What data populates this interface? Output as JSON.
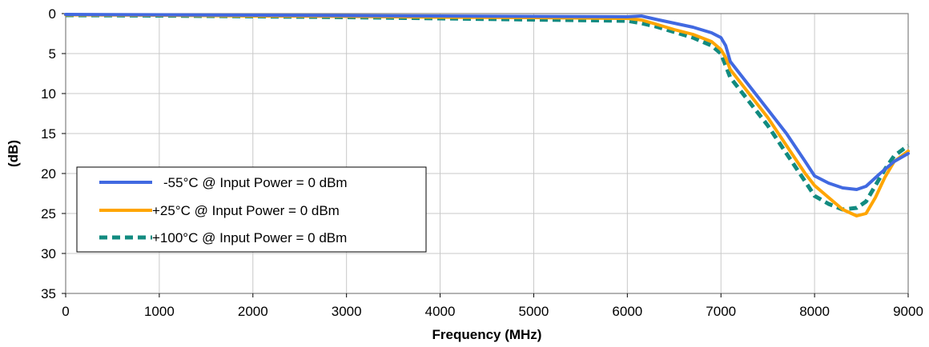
{
  "chart_data": {
    "type": "line",
    "xlabel": "Frequency (MHz)",
    "ylabel": "(dB)",
    "xlim": [
      0,
      9000
    ],
    "ylim": [
      0,
      35
    ],
    "y_inverted": true,
    "x_ticks": [
      0,
      1000,
      2000,
      3000,
      4000,
      5000,
      6000,
      7000,
      8000,
      9000
    ],
    "y_ticks": [
      0,
      5,
      10,
      15,
      20,
      25,
      30,
      35
    ],
    "grid": true,
    "legend_position": "left",
    "series": [
      {
        "name": "-55°C @  Input Power = 0 dBm",
        "color": "#4169E1",
        "style": "solid",
        "points": [
          [
            0,
            0.1
          ],
          [
            1000,
            0.15
          ],
          [
            2000,
            0.2
          ],
          [
            3000,
            0.25
          ],
          [
            4000,
            0.3
          ],
          [
            5000,
            0.35
          ],
          [
            6000,
            0.4
          ],
          [
            6150,
            0.3
          ],
          [
            6300,
            0.7
          ],
          [
            6500,
            1.2
          ],
          [
            6700,
            1.7
          ],
          [
            6900,
            2.4
          ],
          [
            7000,
            3.0
          ],
          [
            7050,
            4.0
          ],
          [
            7100,
            6.0
          ],
          [
            7300,
            9.0
          ],
          [
            7500,
            12.0
          ],
          [
            7700,
            15.0
          ],
          [
            7900,
            18.5
          ],
          [
            8000,
            20.3
          ],
          [
            8150,
            21.2
          ],
          [
            8300,
            21.8
          ],
          [
            8450,
            22.0
          ],
          [
            8550,
            21.6
          ],
          [
            8700,
            20.0
          ],
          [
            8850,
            18.5
          ],
          [
            9000,
            17.5
          ]
        ]
      },
      {
        "name": "+25°C @  Input Power = 0 dBm",
        "color": "#FFA500",
        "style": "solid",
        "points": [
          [
            0,
            0.15
          ],
          [
            1000,
            0.2
          ],
          [
            2000,
            0.3
          ],
          [
            3000,
            0.35
          ],
          [
            4000,
            0.45
          ],
          [
            5000,
            0.5
          ],
          [
            6000,
            0.6
          ],
          [
            6150,
            0.8
          ],
          [
            6300,
            1.3
          ],
          [
            6500,
            2.0
          ],
          [
            6700,
            2.6
          ],
          [
            6900,
            3.5
          ],
          [
            7000,
            4.5
          ],
          [
            7050,
            5.5
          ],
          [
            7100,
            7.0
          ],
          [
            7300,
            10.0
          ],
          [
            7500,
            13.0
          ],
          [
            7700,
            16.5
          ],
          [
            7900,
            20.0
          ],
          [
            8000,
            21.5
          ],
          [
            8150,
            23.0
          ],
          [
            8300,
            24.5
          ],
          [
            8450,
            25.3
          ],
          [
            8550,
            25.0
          ],
          [
            8650,
            23.0
          ],
          [
            8750,
            20.5
          ],
          [
            8850,
            18.5
          ],
          [
            9000,
            17.2
          ]
        ]
      },
      {
        "name": "+100°C @  Input Power = 0 dBm",
        "color": "#128B80",
        "style": "dashed",
        "points": [
          [
            0,
            0.2
          ],
          [
            1000,
            0.25
          ],
          [
            2000,
            0.35
          ],
          [
            3000,
            0.45
          ],
          [
            4000,
            0.6
          ],
          [
            5000,
            0.75
          ],
          [
            6000,
            0.9
          ],
          [
            6150,
            1.2
          ],
          [
            6300,
            1.6
          ],
          [
            6500,
            2.3
          ],
          [
            6700,
            3.0
          ],
          [
            6900,
            4.0
          ],
          [
            7000,
            5.0
          ],
          [
            7050,
            6.5
          ],
          [
            7100,
            8.0
          ],
          [
            7300,
            11.0
          ],
          [
            7500,
            14.0
          ],
          [
            7700,
            17.5
          ],
          [
            7900,
            21.0
          ],
          [
            8000,
            22.8
          ],
          [
            8150,
            23.8
          ],
          [
            8300,
            24.5
          ],
          [
            8450,
            24.3
          ],
          [
            8550,
            23.5
          ],
          [
            8650,
            21.5
          ],
          [
            8750,
            19.5
          ],
          [
            8850,
            17.8
          ],
          [
            9000,
            16.5
          ]
        ]
      }
    ]
  }
}
